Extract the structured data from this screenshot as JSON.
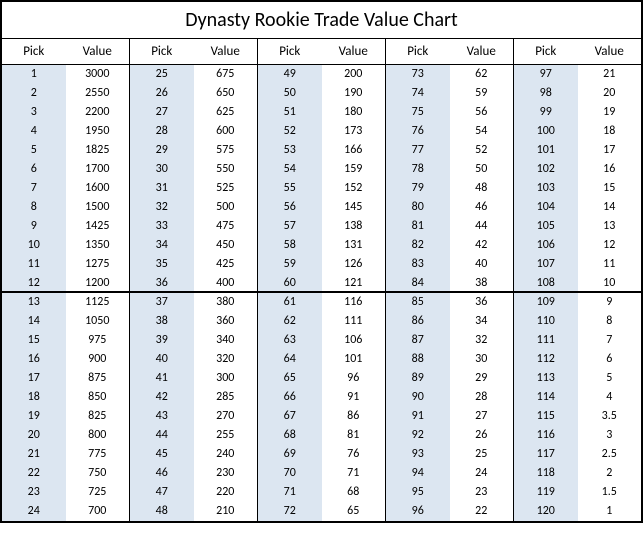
{
  "title": "Dynasty Rookie Trade Value Chart",
  "headers": {
    "pick": "Pick",
    "value": "Value"
  },
  "styling": {
    "pick_cell_bg": "#dce6f1",
    "value_cell_bg": "#ffffff",
    "border_color": "#000000",
    "title_fontsize": 20,
    "header_fontsize": 13,
    "cell_fontsize": 12,
    "divider_after_row": 12,
    "rows_per_column": 24,
    "column_pairs": 5
  },
  "columns": [
    [
      {
        "pick": "1",
        "value": "3000"
      },
      {
        "pick": "2",
        "value": "2550"
      },
      {
        "pick": "3",
        "value": "2200"
      },
      {
        "pick": "4",
        "value": "1950"
      },
      {
        "pick": "5",
        "value": "1825"
      },
      {
        "pick": "6",
        "value": "1700"
      },
      {
        "pick": "7",
        "value": "1600"
      },
      {
        "pick": "8",
        "value": "1500"
      },
      {
        "pick": "9",
        "value": "1425"
      },
      {
        "pick": "10",
        "value": "1350"
      },
      {
        "pick": "11",
        "value": "1275"
      },
      {
        "pick": "12",
        "value": "1200"
      },
      {
        "pick": "13",
        "value": "1125"
      },
      {
        "pick": "14",
        "value": "1050"
      },
      {
        "pick": "15",
        "value": "975"
      },
      {
        "pick": "16",
        "value": "900"
      },
      {
        "pick": "17",
        "value": "875"
      },
      {
        "pick": "18",
        "value": "850"
      },
      {
        "pick": "19",
        "value": "825"
      },
      {
        "pick": "20",
        "value": "800"
      },
      {
        "pick": "21",
        "value": "775"
      },
      {
        "pick": "22",
        "value": "750"
      },
      {
        "pick": "23",
        "value": "725"
      },
      {
        "pick": "24",
        "value": "700"
      }
    ],
    [
      {
        "pick": "25",
        "value": "675"
      },
      {
        "pick": "26",
        "value": "650"
      },
      {
        "pick": "27",
        "value": "625"
      },
      {
        "pick": "28",
        "value": "600"
      },
      {
        "pick": "29",
        "value": "575"
      },
      {
        "pick": "30",
        "value": "550"
      },
      {
        "pick": "31",
        "value": "525"
      },
      {
        "pick": "32",
        "value": "500"
      },
      {
        "pick": "33",
        "value": "475"
      },
      {
        "pick": "34",
        "value": "450"
      },
      {
        "pick": "35",
        "value": "425"
      },
      {
        "pick": "36",
        "value": "400"
      },
      {
        "pick": "37",
        "value": "380"
      },
      {
        "pick": "38",
        "value": "360"
      },
      {
        "pick": "39",
        "value": "340"
      },
      {
        "pick": "40",
        "value": "320"
      },
      {
        "pick": "41",
        "value": "300"
      },
      {
        "pick": "42",
        "value": "285"
      },
      {
        "pick": "43",
        "value": "270"
      },
      {
        "pick": "44",
        "value": "255"
      },
      {
        "pick": "45",
        "value": "240"
      },
      {
        "pick": "46",
        "value": "230"
      },
      {
        "pick": "47",
        "value": "220"
      },
      {
        "pick": "48",
        "value": "210"
      }
    ],
    [
      {
        "pick": "49",
        "value": "200"
      },
      {
        "pick": "50",
        "value": "190"
      },
      {
        "pick": "51",
        "value": "180"
      },
      {
        "pick": "52",
        "value": "173"
      },
      {
        "pick": "53",
        "value": "166"
      },
      {
        "pick": "54",
        "value": "159"
      },
      {
        "pick": "55",
        "value": "152"
      },
      {
        "pick": "56",
        "value": "145"
      },
      {
        "pick": "57",
        "value": "138"
      },
      {
        "pick": "58",
        "value": "131"
      },
      {
        "pick": "59",
        "value": "126"
      },
      {
        "pick": "60",
        "value": "121"
      },
      {
        "pick": "61",
        "value": "116"
      },
      {
        "pick": "62",
        "value": "111"
      },
      {
        "pick": "63",
        "value": "106"
      },
      {
        "pick": "64",
        "value": "101"
      },
      {
        "pick": "65",
        "value": "96"
      },
      {
        "pick": "66",
        "value": "91"
      },
      {
        "pick": "67",
        "value": "86"
      },
      {
        "pick": "68",
        "value": "81"
      },
      {
        "pick": "69",
        "value": "76"
      },
      {
        "pick": "70",
        "value": "71"
      },
      {
        "pick": "71",
        "value": "68"
      },
      {
        "pick": "72",
        "value": "65"
      }
    ],
    [
      {
        "pick": "73",
        "value": "62"
      },
      {
        "pick": "74",
        "value": "59"
      },
      {
        "pick": "75",
        "value": "56"
      },
      {
        "pick": "76",
        "value": "54"
      },
      {
        "pick": "77",
        "value": "52"
      },
      {
        "pick": "78",
        "value": "50"
      },
      {
        "pick": "79",
        "value": "48"
      },
      {
        "pick": "80",
        "value": "46"
      },
      {
        "pick": "81",
        "value": "44"
      },
      {
        "pick": "82",
        "value": "42"
      },
      {
        "pick": "83",
        "value": "40"
      },
      {
        "pick": "84",
        "value": "38"
      },
      {
        "pick": "85",
        "value": "36"
      },
      {
        "pick": "86",
        "value": "34"
      },
      {
        "pick": "87",
        "value": "32"
      },
      {
        "pick": "88",
        "value": "30"
      },
      {
        "pick": "89",
        "value": "29"
      },
      {
        "pick": "90",
        "value": "28"
      },
      {
        "pick": "91",
        "value": "27"
      },
      {
        "pick": "92",
        "value": "26"
      },
      {
        "pick": "93",
        "value": "25"
      },
      {
        "pick": "94",
        "value": "24"
      },
      {
        "pick": "95",
        "value": "23"
      },
      {
        "pick": "96",
        "value": "22"
      }
    ],
    [
      {
        "pick": "97",
        "value": "21"
      },
      {
        "pick": "98",
        "value": "20"
      },
      {
        "pick": "99",
        "value": "19"
      },
      {
        "pick": "100",
        "value": "18"
      },
      {
        "pick": "101",
        "value": "17"
      },
      {
        "pick": "102",
        "value": "16"
      },
      {
        "pick": "103",
        "value": "15"
      },
      {
        "pick": "104",
        "value": "14"
      },
      {
        "pick": "105",
        "value": "13"
      },
      {
        "pick": "106",
        "value": "12"
      },
      {
        "pick": "107",
        "value": "11"
      },
      {
        "pick": "108",
        "value": "10"
      },
      {
        "pick": "109",
        "value": "9"
      },
      {
        "pick": "110",
        "value": "8"
      },
      {
        "pick": "111",
        "value": "7"
      },
      {
        "pick": "112",
        "value": "6"
      },
      {
        "pick": "113",
        "value": "5"
      },
      {
        "pick": "114",
        "value": "4"
      },
      {
        "pick": "115",
        "value": "3.5"
      },
      {
        "pick": "116",
        "value": "3"
      },
      {
        "pick": "117",
        "value": "2.5"
      },
      {
        "pick": "118",
        "value": "2"
      },
      {
        "pick": "119",
        "value": "1.5"
      },
      {
        "pick": "120",
        "value": "1"
      }
    ]
  ]
}
